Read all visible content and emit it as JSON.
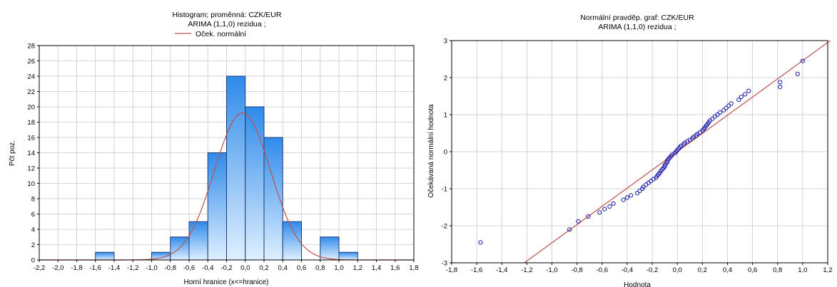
{
  "chart_data": [
    {
      "type": "bar",
      "title": "Histogram; proměnná: CZK/EUR",
      "subtitle": "ARIMA (1,1,0) rezidua   ;",
      "xlabel": "Horní hranice (x<=hranice)",
      "ylabel": "Pčt poz.",
      "legend": [
        {
          "name": "Oček. normální",
          "color": "#c0504d"
        }
      ],
      "legend_position": "top-center",
      "grid": true,
      "xlim": [
        -2.2,
        1.8
      ],
      "ylim": [
        0,
        28
      ],
      "xticks": [
        "-2,2",
        "-2,0",
        "-1,8",
        "-1,6",
        "-1,4",
        "-1,2",
        "-1,0",
        "-0,8",
        "-0,6",
        "-0,4",
        "-0,2",
        "0,0",
        "0,2",
        "0,4",
        "0,6",
        "0,8",
        "1,0",
        "1,2",
        "1,4",
        "1,6",
        "1,8"
      ],
      "yticks": [
        "0",
        "2",
        "4",
        "6",
        "8",
        "10",
        "12",
        "14",
        "16",
        "18",
        "20",
        "22",
        "24",
        "26",
        "28"
      ],
      "bins": [
        {
          "upper": -1.4,
          "count": 1
        },
        {
          "upper": -0.8,
          "count": 1
        },
        {
          "upper": -0.6,
          "count": 3
        },
        {
          "upper": -0.4,
          "count": 5
        },
        {
          "upper": -0.2,
          "count": 14
        },
        {
          "upper": 0.0,
          "count": 24
        },
        {
          "upper": 0.2,
          "count": 20
        },
        {
          "upper": 0.4,
          "count": 16
        },
        {
          "upper": 0.6,
          "count": 5
        },
        {
          "upper": 1.0,
          "count": 3
        },
        {
          "upper": 1.2,
          "count": 1
        }
      ],
      "bin_width": 0.2,
      "normal_curve": {
        "mean": -0.03,
        "peak": 19.2,
        "sd": 0.3
      },
      "colors": {
        "bar_top": "#2f8bea",
        "bar_bottom": "#dff0ff",
        "bar_edge": "#1d3a78",
        "curve": "#c0504d",
        "grid": "#c8c8c8"
      }
    },
    {
      "type": "scatter",
      "title": "Normální pravděp. graf: CZK/EUR",
      "subtitle": "ARIMA (1,1,0) rezidua   ;",
      "xlabel": "Hodnota",
      "ylabel": "Očekávaná normální hodnota",
      "grid": true,
      "xlim": [
        -1.8,
        1.2
      ],
      "ylim": [
        -3,
        3
      ],
      "xticks": [
        "-1,8",
        "-1,6",
        "-1,4",
        "-1,2",
        "-1,0",
        "-0,8",
        "-0,6",
        "-0,4",
        "-0,2",
        "0,0",
        "0,2",
        "0,4",
        "0,6",
        "0,8",
        "1,0",
        "1,2"
      ],
      "yticks": [
        "-3",
        "-2",
        "-1",
        "0",
        "1",
        "2",
        "3"
      ],
      "reference_line": {
        "x": [
          -1.22,
          1.22
        ],
        "y": [
          -3,
          3
        ]
      },
      "points": [
        {
          "x": -1.57,
          "y": -2.45
        },
        {
          "x": -0.86,
          "y": -2.1
        },
        {
          "x": -0.79,
          "y": -1.88
        },
        {
          "x": -0.71,
          "y": -1.75
        },
        {
          "x": -0.62,
          "y": -1.64
        },
        {
          "x": -0.58,
          "y": -1.55
        },
        {
          "x": -0.54,
          "y": -1.48
        },
        {
          "x": -0.51,
          "y": -1.4
        },
        {
          "x": -0.43,
          "y": -1.3
        },
        {
          "x": -0.4,
          "y": -1.24
        },
        {
          "x": -0.37,
          "y": -1.18
        },
        {
          "x": -0.32,
          "y": -1.12
        },
        {
          "x": -0.3,
          "y": -1.06
        },
        {
          "x": -0.28,
          "y": -1.0
        },
        {
          "x": -0.27,
          "y": -0.95
        },
        {
          "x": -0.25,
          "y": -0.89
        },
        {
          "x": -0.23,
          "y": -0.84
        },
        {
          "x": -0.21,
          "y": -0.79
        },
        {
          "x": -0.19,
          "y": -0.74
        },
        {
          "x": -0.17,
          "y": -0.7
        },
        {
          "x": -0.16,
          "y": -0.65
        },
        {
          "x": -0.15,
          "y": -0.61
        },
        {
          "x": -0.14,
          "y": -0.57
        },
        {
          "x": -0.13,
          "y": -0.52
        },
        {
          "x": -0.12,
          "y": -0.48
        },
        {
          "x": -0.11,
          "y": -0.44
        },
        {
          "x": -0.1,
          "y": -0.4
        },
        {
          "x": -0.1,
          "y": -0.36
        },
        {
          "x": -0.09,
          "y": -0.32
        },
        {
          "x": -0.08,
          "y": -0.28
        },
        {
          "x": -0.08,
          "y": -0.24
        },
        {
          "x": -0.07,
          "y": -0.2
        },
        {
          "x": -0.06,
          "y": -0.16
        },
        {
          "x": -0.05,
          "y": -0.12
        },
        {
          "x": -0.04,
          "y": -0.08
        },
        {
          "x": -0.02,
          "y": -0.04
        },
        {
          "x": -0.01,
          "y": 0.0
        },
        {
          "x": 0.0,
          "y": 0.04
        },
        {
          "x": 0.01,
          "y": 0.08
        },
        {
          "x": 0.02,
          "y": 0.12
        },
        {
          "x": 0.03,
          "y": 0.16
        },
        {
          "x": 0.05,
          "y": 0.2
        },
        {
          "x": 0.06,
          "y": 0.24
        },
        {
          "x": 0.08,
          "y": 0.28
        },
        {
          "x": 0.1,
          "y": 0.32
        },
        {
          "x": 0.12,
          "y": 0.36
        },
        {
          "x": 0.13,
          "y": 0.4
        },
        {
          "x": 0.15,
          "y": 0.44
        },
        {
          "x": 0.16,
          "y": 0.48
        },
        {
          "x": 0.18,
          "y": 0.52
        },
        {
          "x": 0.2,
          "y": 0.57
        },
        {
          "x": 0.21,
          "y": 0.61
        },
        {
          "x": 0.22,
          "y": 0.65
        },
        {
          "x": 0.23,
          "y": 0.7
        },
        {
          "x": 0.24,
          "y": 0.74
        },
        {
          "x": 0.25,
          "y": 0.79
        },
        {
          "x": 0.26,
          "y": 0.84
        },
        {
          "x": 0.28,
          "y": 0.89
        },
        {
          "x": 0.3,
          "y": 0.95
        },
        {
          "x": 0.32,
          "y": 1.0
        },
        {
          "x": 0.34,
          "y": 1.06
        },
        {
          "x": 0.37,
          "y": 1.12
        },
        {
          "x": 0.39,
          "y": 1.18
        },
        {
          "x": 0.41,
          "y": 1.24
        },
        {
          "x": 0.43,
          "y": 1.3
        },
        {
          "x": 0.49,
          "y": 1.4
        },
        {
          "x": 0.51,
          "y": 1.48
        },
        {
          "x": 0.54,
          "y": 1.55
        },
        {
          "x": 0.57,
          "y": 1.64
        },
        {
          "x": 0.82,
          "y": 1.75
        },
        {
          "x": 0.82,
          "y": 1.88
        },
        {
          "x": 0.96,
          "y": 2.1
        },
        {
          "x": 1.0,
          "y": 2.45
        }
      ],
      "colors": {
        "marker": "#1a1aa8",
        "line": "#c0504d",
        "grid": "#c8c8c8"
      }
    }
  ]
}
